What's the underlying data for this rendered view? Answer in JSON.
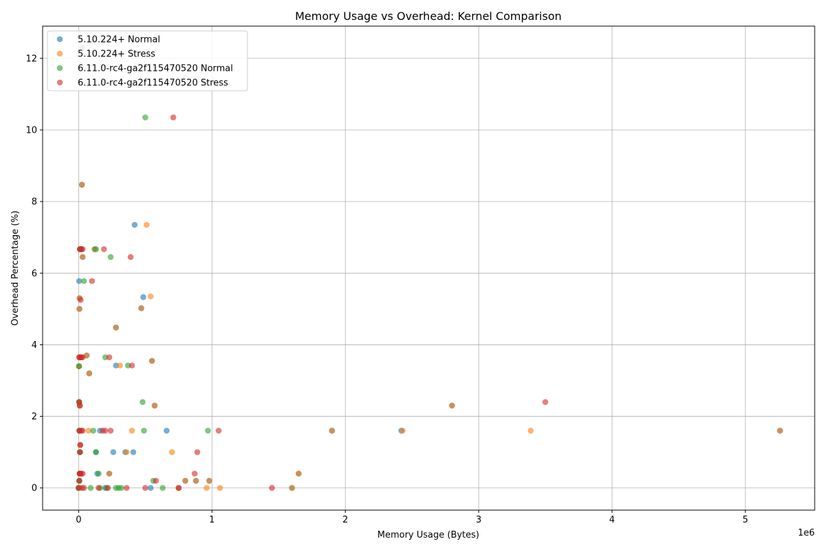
{
  "chart_data": {
    "type": "scatter",
    "title": "Memory Usage vs Overhead: Kernel Comparison",
    "xlabel": "Memory Usage (Bytes)",
    "ylabel": "Overhead Percentage (%)",
    "x_offset_label": "1e6",
    "xlim": [
      -270000,
      5520000
    ],
    "ylim": [
      -0.62,
      12.9
    ],
    "xticks": [
      0,
      1000000,
      2000000,
      3000000,
      4000000,
      5000000
    ],
    "xtick_labels": [
      "0",
      "1",
      "2",
      "3",
      "4",
      "5"
    ],
    "yticks": [
      0,
      2,
      4,
      6,
      8,
      10,
      12
    ],
    "ytick_labels": [
      "0",
      "2",
      "4",
      "6",
      "8",
      "10",
      "12"
    ],
    "grid": true,
    "legend_position": "top-left",
    "series": [
      {
        "name": "5.10.224+ Normal",
        "color": "#1f77b4",
        "points": [
          [
            0,
            0
          ],
          [
            5000,
            0.2
          ],
          [
            8000,
            0.4
          ],
          [
            10000,
            1.0
          ],
          [
            12000,
            1.2
          ],
          [
            6000,
            1.6
          ],
          [
            4000,
            2.4
          ],
          [
            9000,
            2.3
          ],
          [
            3000,
            3.4
          ],
          [
            5000,
            3.65
          ],
          [
            15000,
            3.65
          ],
          [
            6000,
            5.0
          ],
          [
            7000,
            5.3
          ],
          [
            4000,
            5.78
          ],
          [
            10000,
            6.67
          ],
          [
            20000,
            6.67
          ],
          [
            30000,
            6.45
          ],
          [
            25000,
            8.47
          ],
          [
            28000,
            12.3
          ],
          [
            60000,
            3.7
          ],
          [
            80000,
            3.2
          ],
          [
            120000,
            6.67
          ],
          [
            130000,
            1.0
          ],
          [
            140000,
            0.4
          ],
          [
            160000,
            1.6
          ],
          [
            200000,
            0.0
          ],
          [
            230000,
            0.4
          ],
          [
            260000,
            1.0
          ],
          [
            280000,
            3.42
          ],
          [
            280000,
            4.48
          ],
          [
            350000,
            1.0
          ],
          [
            410000,
            1.0
          ],
          [
            420000,
            7.35
          ],
          [
            470000,
            5.02
          ],
          [
            485000,
            5.33
          ],
          [
            540000,
            0.0
          ],
          [
            550000,
            3.55
          ],
          [
            570000,
            2.3
          ],
          [
            660000,
            1.6
          ],
          [
            750000,
            0.0
          ],
          [
            800000,
            0.2
          ],
          [
            880000,
            0.2
          ],
          [
            980000,
            0.2
          ],
          [
            1600000,
            0.0
          ],
          [
            1650000,
            0.4
          ],
          [
            1900000,
            1.6
          ],
          [
            2420000,
            1.6
          ],
          [
            2800000,
            2.3
          ],
          [
            5260000,
            1.6
          ]
        ]
      },
      {
        "name": "5.10.224+ Stress",
        "color": "#ff7f0e",
        "points": [
          [
            0,
            0
          ],
          [
            5000,
            0.2
          ],
          [
            8000,
            0.4
          ],
          [
            10000,
            1.0
          ],
          [
            12000,
            1.2
          ],
          [
            6000,
            1.6
          ],
          [
            4000,
            2.4
          ],
          [
            9000,
            2.3
          ],
          [
            3000,
            3.4
          ],
          [
            5000,
            3.65
          ],
          [
            6000,
            5.0
          ],
          [
            7000,
            5.3
          ],
          [
            10000,
            6.67
          ],
          [
            30000,
            6.45
          ],
          [
            25000,
            8.47
          ],
          [
            28000,
            12.3
          ],
          [
            60000,
            3.7
          ],
          [
            75000,
            1.6
          ],
          [
            80000,
            3.2
          ],
          [
            120000,
            6.67
          ],
          [
            230000,
            0.4
          ],
          [
            280000,
            4.48
          ],
          [
            310000,
            3.42
          ],
          [
            360000,
            1.0
          ],
          [
            400000,
            1.6
          ],
          [
            470000,
            5.02
          ],
          [
            510000,
            7.35
          ],
          [
            540000,
            5.35
          ],
          [
            550000,
            3.55
          ],
          [
            570000,
            2.3
          ],
          [
            700000,
            1.0
          ],
          [
            750000,
            0.0
          ],
          [
            800000,
            0.2
          ],
          [
            880000,
            0.2
          ],
          [
            960000,
            0.0
          ],
          [
            980000,
            0.2
          ],
          [
            1060000,
            0.0
          ],
          [
            1600000,
            0.0
          ],
          [
            1650000,
            0.4
          ],
          [
            1900000,
            1.6
          ],
          [
            2430000,
            1.6
          ],
          [
            2800000,
            2.3
          ],
          [
            3390000,
            1.6
          ],
          [
            5260000,
            1.6
          ]
        ]
      },
      {
        "name": "6.11.0-rc4-ga2f115470520 Normal",
        "color": "#2ca02c",
        "points": [
          [
            0,
            0
          ],
          [
            5000,
            0.2
          ],
          [
            8000,
            0.4
          ],
          [
            10000,
            1.0
          ],
          [
            6000,
            1.6
          ],
          [
            4000,
            2.4
          ],
          [
            3000,
            3.4
          ],
          [
            10000,
            6.67
          ],
          [
            40000,
            5.78
          ],
          [
            90000,
            0.0
          ],
          [
            110000,
            1.6
          ],
          [
            130000,
            1.0
          ],
          [
            130000,
            6.67
          ],
          [
            150000,
            0.4
          ],
          [
            160000,
            0.0
          ],
          [
            200000,
            3.65
          ],
          [
            210000,
            0.0
          ],
          [
            240000,
            6.45
          ],
          [
            280000,
            0.0
          ],
          [
            300000,
            0.0
          ],
          [
            320000,
            0.0
          ],
          [
            370000,
            3.42
          ],
          [
            480000,
            2.4
          ],
          [
            490000,
            1.6
          ],
          [
            500000,
            10.35
          ],
          [
            560000,
            0.2
          ],
          [
            630000,
            0.0
          ],
          [
            970000,
            1.6
          ]
        ]
      },
      {
        "name": "6.11.0-rc4-ga2f115470520 Stress",
        "color": "#d62728",
        "points": [
          [
            0,
            0
          ],
          [
            5000,
            0.2
          ],
          [
            8000,
            0.4
          ],
          [
            10000,
            1.0
          ],
          [
            12000,
            1.2
          ],
          [
            6000,
            1.6
          ],
          [
            4000,
            2.4
          ],
          [
            9000,
            2.3
          ],
          [
            5000,
            3.65
          ],
          [
            15000,
            3.65
          ],
          [
            20000,
            3.65
          ],
          [
            30000,
            3.65
          ],
          [
            10000,
            6.67
          ],
          [
            20000,
            6.67
          ],
          [
            30000,
            6.67
          ],
          [
            15000,
            5.25
          ],
          [
            12000,
            0.4
          ],
          [
            20000,
            0.4
          ],
          [
            30000,
            0.4
          ],
          [
            20000,
            1.6
          ],
          [
            30000,
            1.6
          ],
          [
            25000,
            0.0
          ],
          [
            40000,
            0.0
          ],
          [
            100000,
            5.78
          ],
          [
            150000,
            0.0
          ],
          [
            180000,
            1.6
          ],
          [
            190000,
            6.67
          ],
          [
            200000,
            1.6
          ],
          [
            220000,
            0.0
          ],
          [
            230000,
            3.65
          ],
          [
            240000,
            1.6
          ],
          [
            360000,
            0.0
          ],
          [
            390000,
            6.45
          ],
          [
            400000,
            3.42
          ],
          [
            500000,
            0.0
          ],
          [
            580000,
            0.2
          ],
          [
            710000,
            10.35
          ],
          [
            750000,
            0.0
          ],
          [
            870000,
            0.4
          ],
          [
            890000,
            1.0
          ],
          [
            1050000,
            1.6
          ],
          [
            1450000,
            0.0
          ],
          [
            3500000,
            2.4
          ]
        ]
      }
    ]
  }
}
